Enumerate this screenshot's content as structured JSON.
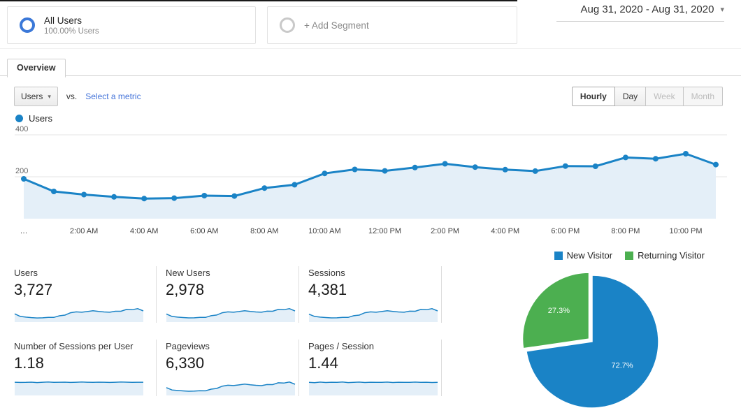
{
  "header": {
    "top_segment": {
      "label": "All Users",
      "sublabel": "100.00% Users"
    },
    "add_segment": {
      "label": "+ Add Segment"
    },
    "date_range": {
      "label": "Aug 31, 2020 - Aug 31, 2020",
      "caret": "▾"
    }
  },
  "tabs": {
    "overview_label": "Overview"
  },
  "controls": {
    "metric_dropdown": {
      "label": "Users",
      "caret": "▾"
    },
    "vs_label": "vs.",
    "select_metric_label": "Select a metric",
    "granularity": [
      {
        "label": "Hourly",
        "state": "active"
      },
      {
        "label": "Day",
        "state": "normal"
      },
      {
        "label": "Week",
        "state": "disabled"
      },
      {
        "label": "Month",
        "state": "disabled"
      }
    ]
  },
  "series_legend": {
    "label": "Users"
  },
  "visitor_legend": [
    {
      "label": "New Visitor",
      "color_key": "blue"
    },
    {
      "label": "Returning Visitor",
      "color_key": "green"
    }
  ],
  "colors": {
    "blue": "#1a83c6",
    "green": "#4caf50",
    "area_fill": "#e4eff8",
    "grid": "#e6e6e6",
    "link": "#4272d9"
  },
  "chart_data": [
    {
      "type": "line",
      "series_name": "Users",
      "values": [
        190,
        130,
        115,
        104,
        96,
        98,
        110,
        108,
        146,
        162,
        216,
        235,
        228,
        244,
        262,
        246,
        234,
        227,
        251,
        250,
        292,
        286,
        310,
        258
      ],
      "ylim": [
        0,
        400
      ],
      "yticks": [
        200,
        400
      ],
      "grid": true,
      "tick_labels": [
        "…",
        "2:00 AM",
        "4:00 AM",
        "6:00 AM",
        "8:00 AM",
        "10:00 AM",
        "12:00 PM",
        "2:00 PM",
        "4:00 PM",
        "6:00 PM",
        "8:00 PM",
        "10:00 PM"
      ],
      "tick_indices": [
        0,
        2,
        4,
        6,
        8,
        10,
        12,
        14,
        16,
        18,
        20,
        22
      ]
    },
    {
      "type": "pie",
      "slices": [
        {
          "label": "New Visitor",
          "value": 72.7,
          "pct_label": "72.7%",
          "color_key": "blue",
          "exploded": false
        },
        {
          "label": "Returning Visitor",
          "value": 27.3,
          "pct_label": "27.3%",
          "color_key": "green",
          "exploded": true
        }
      ]
    }
  ],
  "metric_cards": [
    {
      "label": "Users",
      "value": "3,727",
      "spark": [
        190,
        130,
        115,
        104,
        96,
        98,
        110,
        108,
        146,
        162,
        216,
        235,
        228,
        244,
        262,
        246,
        234,
        227,
        251,
        250,
        292,
        286,
        310,
        258
      ]
    },
    {
      "label": "New Users",
      "value": "2,978",
      "spark": [
        150,
        105,
        92,
        84,
        77,
        79,
        88,
        86,
        117,
        130,
        173,
        188,
        182,
        195,
        210,
        197,
        187,
        182,
        201,
        200,
        234,
        229,
        248,
        206
      ]
    },
    {
      "label": "Sessions",
      "value": "4,381",
      "spark": [
        210,
        150,
        132,
        120,
        112,
        114,
        126,
        124,
        168,
        186,
        248,
        270,
        262,
        280,
        301,
        283,
        269,
        261,
        289,
        287,
        336,
        329,
        356,
        297
      ]
    },
    {
      "label": "Number of Sessions per User",
      "value": "1.18",
      "spark": [
        1.18,
        1.16,
        1.17,
        1.19,
        1.15,
        1.18,
        1.2,
        1.17,
        1.18,
        1.19,
        1.16,
        1.18,
        1.2,
        1.18,
        1.17,
        1.19,
        1.18,
        1.16,
        1.18,
        1.2,
        1.19,
        1.17,
        1.18,
        1.18
      ]
    },
    {
      "label": "Pageviews",
      "value": "6,330",
      "spark": [
        300,
        210,
        190,
        175,
        160,
        165,
        180,
        178,
        240,
        268,
        356,
        390,
        378,
        404,
        435,
        408,
        388,
        376,
        417,
        414,
        485,
        475,
        514,
        429
      ]
    },
    {
      "label": "Pages / Session",
      "value": "1.44",
      "spark": [
        1.44,
        1.4,
        1.46,
        1.42,
        1.45,
        1.43,
        1.47,
        1.41,
        1.44,
        1.46,
        1.42,
        1.45,
        1.43,
        1.44,
        1.46,
        1.42,
        1.45,
        1.43,
        1.44,
        1.46,
        1.43,
        1.45,
        1.42,
        1.44
      ]
    }
  ]
}
